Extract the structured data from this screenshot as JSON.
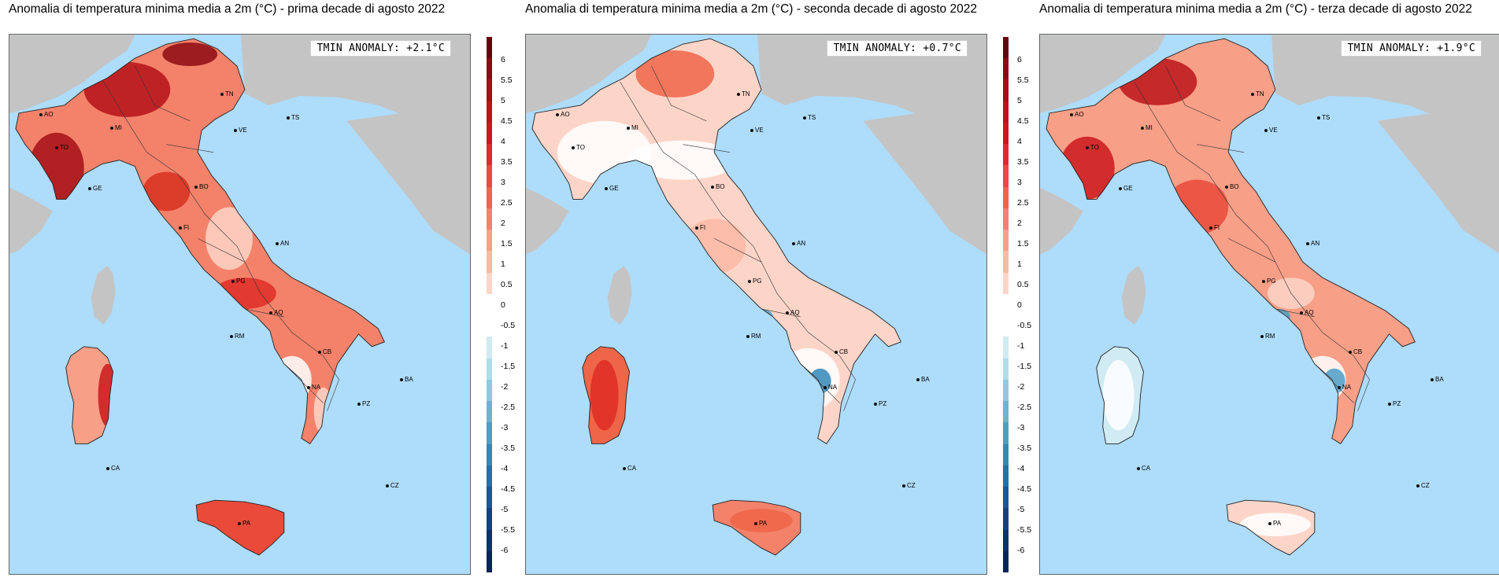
{
  "panels": [
    {
      "title": "Anomalia di temperatura minima media a 2m (°C) - prima decade di agosto 2022",
      "anomaly_label": "TMIN ANOMALY: +2.1°C",
      "anomaly_value": 2.1
    },
    {
      "title": "Anomalia di temperatura minima media a 2m (°C) - seconda decade di agosto 2022",
      "anomaly_label": "TMIN ANOMALY: +0.7°C",
      "anomaly_value": 0.7
    },
    {
      "title": "Anomalia di temperatura minima media a 2m (°C) - terza decade di agosto 2022",
      "anomaly_label": "TMIN ANOMALY: +1.9°C",
      "anomaly_value": 1.9
    }
  ],
  "cities": [
    "TN",
    "TS",
    "AO",
    "MI",
    "VE",
    "TO",
    "GE",
    "BO",
    "FI",
    "AN",
    "PG",
    "AQ",
    "RM",
    "CB",
    "NA",
    "BA",
    "PZ",
    "CZ",
    "PA",
    "CA"
  ],
  "colorbar": {
    "labels": [
      "6",
      "5.5",
      "5",
      "4.5",
      "4",
      "3.5",
      "3",
      "2.5",
      "2",
      "1.5",
      "1",
      "0.5",
      "0",
      "-0.5",
      "-1",
      "-1.5",
      "-2",
      "-2.5",
      "-3",
      "-3.5",
      "-4",
      "-4.5",
      "-5",
      "-5.5",
      "-6"
    ],
    "colors": [
      "#67000d",
      "#8c0a12",
      "#a50f15",
      "#bc141a",
      "#cb181d",
      "#de2d26",
      "#ea4a3a",
      "#ef6548",
      "#f4826a",
      "#f89f88",
      "#fbb9a4",
      "#fdd5c8",
      "#ffffff",
      "#ffffff",
      "#d0ebf3",
      "#b0dcea",
      "#8ec9df",
      "#6cb3d3",
      "#4c9dc8",
      "#3487bb",
      "#2270ad",
      "#15589c",
      "#0d4488",
      "#083371",
      "#072558"
    ]
  },
  "colors": {
    "sea": "#aedcfb",
    "land_outside": "#c4c4c4",
    "border": "#222222"
  }
}
